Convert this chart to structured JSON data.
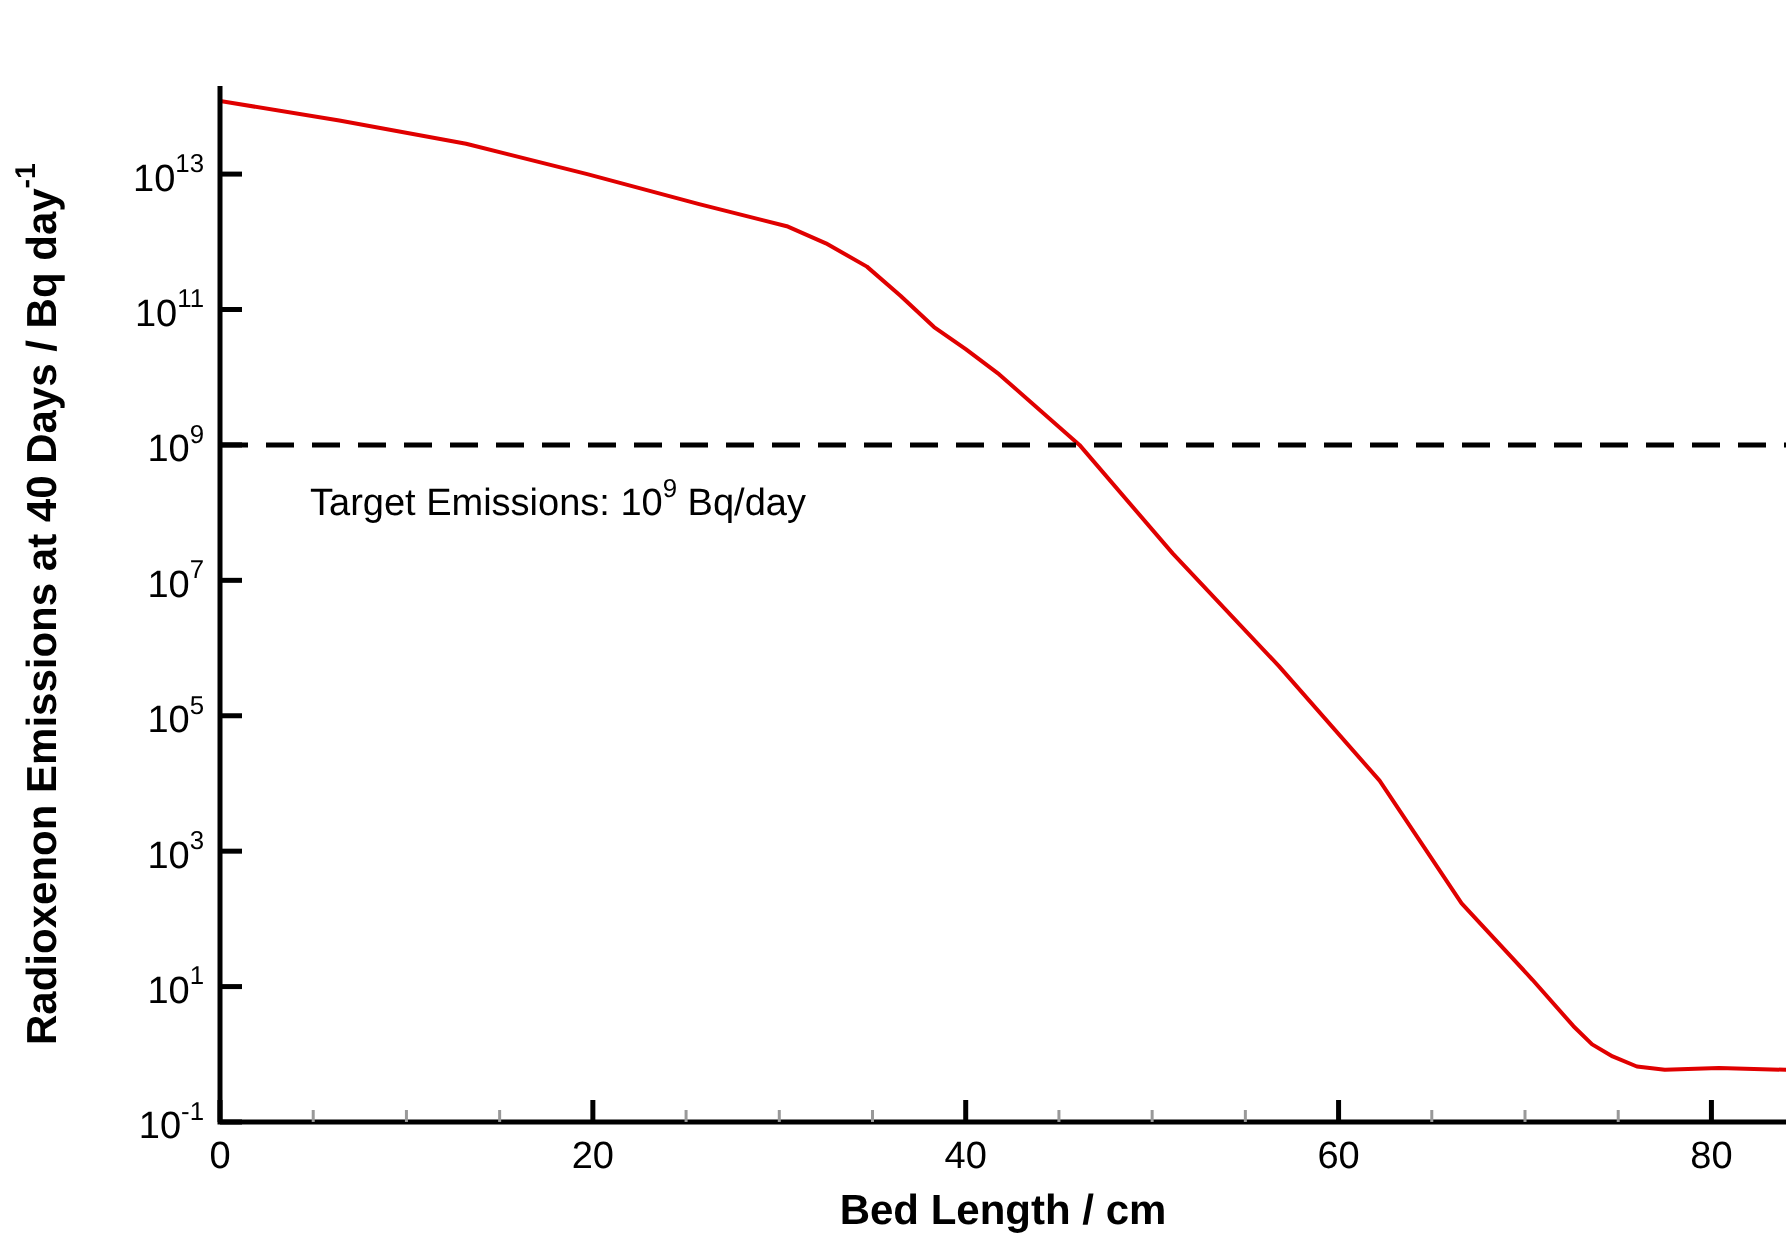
{
  "chart_data": {
    "type": "line",
    "xlabel": "Bed Length / cm",
    "ylabel": "Radioxenon Emissions at 40 Days / Bq day$^{-1}$",
    "x": [
      0,
      6.4,
      13.2,
      19.7,
      25.7,
      30.4,
      32.5,
      34.7,
      36.5,
      38.3,
      40,
      41.8,
      46.1,
      51.1,
      56.8,
      62.2,
      66.6,
      70.4,
      72.6,
      73.6,
      74.7,
      76,
      77.5,
      80.4,
      84
    ],
    "series": [
      {
        "color": "#e00000",
        "values": [
          120000000000000.0,
          62000000000000.0,
          28000000000000.0,
          10000000000000.0,
          3600000000000.0,
          1700000000000.0,
          950000000000.0,
          430000000000.0,
          160000000000.0,
          55000000000.0,
          26000000000.0,
          11000000000.0,
          1000000000.0,
          25000000.0,
          540000.0,
          11000.0,
          170,
          12.6,
          2.6,
          1.4,
          0.93,
          0.66,
          0.59,
          0.63,
          0.59
        ]
      }
    ],
    "xlim": [
      0,
      84
    ],
    "ylim": [
      0.1,
      200000000000000.0
    ],
    "xticks": [
      0,
      {
        "value": 5,
        "label": null
      },
      {
        "value": 10,
        "label": null
      },
      {
        "value": 15,
        "label": null
      },
      20,
      {
        "value": 25,
        "label": null
      },
      {
        "value": 30,
        "label": null
      },
      {
        "value": 35,
        "label": null
      },
      40,
      {
        "value": 45,
        "label": null
      },
      {
        "value": 50,
        "label": null
      },
      {
        "value": 55,
        "label": null
      },
      60,
      {
        "value": 65,
        "label": null
      },
      {
        "value": 70,
        "label": null
      },
      {
        "value": 75,
        "label": null
      },
      80
    ],
    "yticks": [
      {
        "value": 0.1,
        "label": "10$^{-1}$"
      },
      {
        "value": 10,
        "label": "10$^{1}$"
      },
      {
        "value": 1000,
        "label": "10$^{3}$"
      },
      {
        "value": 100000,
        "label": "10$^{5}$"
      },
      {
        "value": 10000000,
        "label": "10$^{7}$"
      },
      {
        "value": 1000000000,
        "label": "10$^{9}$"
      },
      {
        "value": 100000000000,
        "label": "10$^{11}$"
      },
      {
        "value": 10000000000000,
        "label": "10$^{13}$"
      }
    ],
    "log": true,
    "grid": false,
    "marker": "none",
    "line_style": "solid",
    "ref_lines": [
      {
        "axis": "y",
        "value": 1000000000,
        "color": "#000000",
        "line_style": "dashed"
      }
    ],
    "annotations": [
      "Target Emissions: 10$^{9}$ Bq/day"
    ]
  }
}
